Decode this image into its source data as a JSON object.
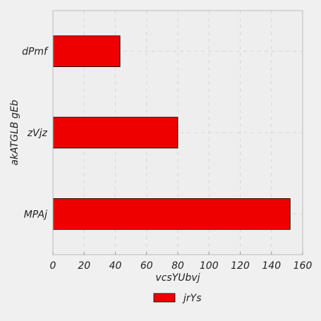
{
  "chart_data": {
    "type": "bar",
    "orientation": "horizontal",
    "categories": [
      "MPAj",
      "zVjz",
      "dPmf"
    ],
    "series": [
      {
        "name": "jrYs",
        "values": [
          152,
          80,
          43
        ],
        "color": "#ee0000"
      }
    ],
    "xlabel": "vcsYUbvj",
    "ylabel": "akATGLB gEb",
    "xlim": [
      0,
      160
    ],
    "xticks": [
      0,
      20,
      40,
      60,
      80,
      100,
      120,
      140,
      160
    ],
    "grid": true,
    "legend_position": "bottom-center",
    "background": "#eeeeee"
  }
}
